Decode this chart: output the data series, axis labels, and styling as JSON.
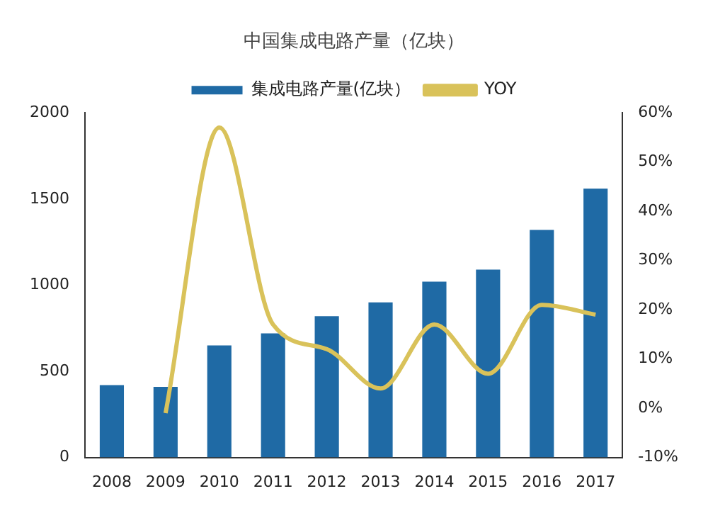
{
  "chart_data": {
    "type": "bar",
    "title": "中国集成电路产量（亿块）",
    "categories": [
      "2008",
      "2009",
      "2010",
      "2011",
      "2012",
      "2013",
      "2014",
      "2015",
      "2016",
      "2017"
    ],
    "series": [
      {
        "name": "集成电路产量(亿块）",
        "color": "#1f6aa5",
        "values": [
          420,
          410,
          650,
          720,
          820,
          900,
          1020,
          1090,
          1320,
          1560
        ]
      },
      {
        "name": "YOY",
        "type": "line",
        "axis": "y2",
        "color": "#d9c25a",
        "values": [
          null,
          -1,
          57,
          17,
          12,
          4,
          17,
          7,
          21,
          19
        ]
      }
    ],
    "ylim": [
      0,
      2000
    ],
    "yticks": [
      0,
      500,
      1000,
      1500,
      2000
    ],
    "y2lim": [
      -10,
      60
    ],
    "y2ticks": [
      {
        "value": -10,
        "label": "-10%"
      },
      {
        "value": 0,
        "label": "0%"
      },
      {
        "value": 10,
        "label": "10%"
      },
      {
        "value": 20,
        "label": "20%"
      },
      {
        "value": 30,
        "label": "30%"
      },
      {
        "value": 40,
        "label": "40%"
      },
      {
        "value": 50,
        "label": "50%"
      },
      {
        "value": 60,
        "label": "60%"
      }
    ],
    "grid": false,
    "legend": "top",
    "marker": "none"
  }
}
